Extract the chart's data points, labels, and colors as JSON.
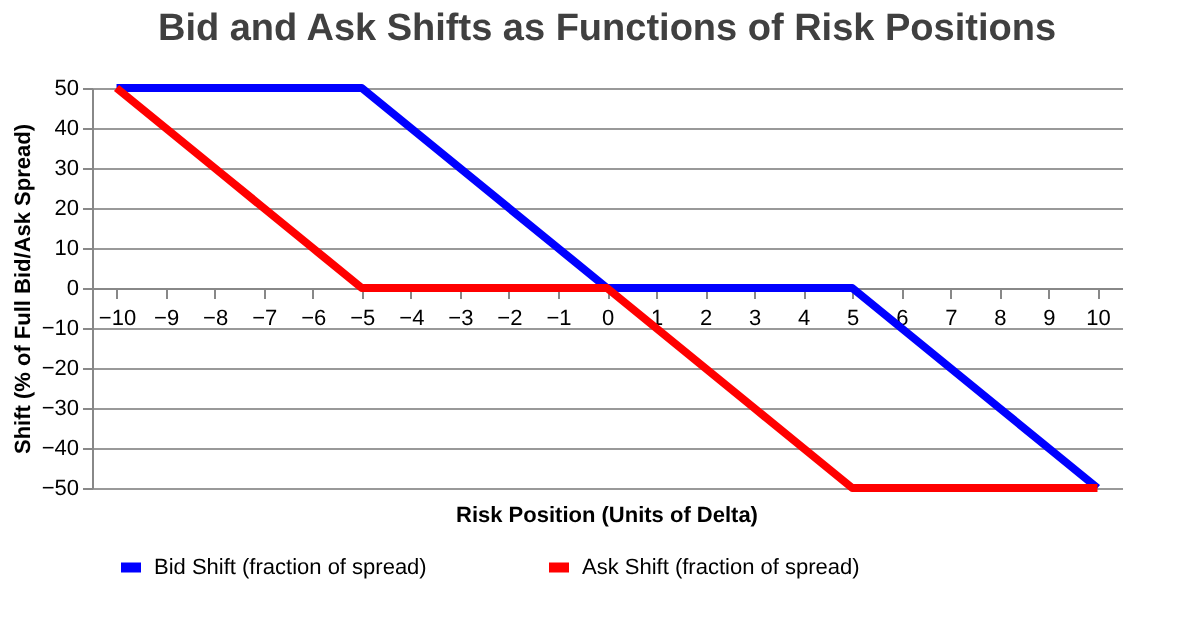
{
  "chart_data": {
    "type": "line",
    "title": "Bid and Ask Shifts as Functions of Risk Positions",
    "xlabel": "Risk Position (Units of Delta)",
    "ylabel": "Shift (% of Full Bid/Ask Spread)",
    "x": [
      -10,
      -9,
      -8,
      -7,
      -6,
      -5,
      -4,
      -3,
      -2,
      -1,
      0,
      1,
      2,
      3,
      4,
      5,
      6,
      7,
      8,
      9,
      10
    ],
    "series": [
      {
        "name": "Bid Shift (fraction of spread)",
        "color": "#0000ff",
        "values": [
          50,
          50,
          50,
          50,
          50,
          50,
          40,
          30,
          20,
          10,
          0,
          0,
          0,
          0,
          0,
          0,
          -10,
          -20,
          -30,
          -40,
          -50
        ]
      },
      {
        "name": "Ask Shift (fraction of spread)",
        "color": "#ff0000",
        "values": [
          50,
          40,
          30,
          20,
          10,
          0,
          0,
          0,
          0,
          0,
          0,
          -10,
          -20,
          -30,
          -40,
          -50,
          -50,
          -50,
          -50,
          -50,
          -50
        ]
      }
    ],
    "xlim": [
      -10.5,
      10.5
    ],
    "xticks": [
      -10,
      -9,
      -8,
      -7,
      -6,
      -5,
      -4,
      -3,
      -2,
      -1,
      0,
      1,
      2,
      3,
      4,
      5,
      6,
      7,
      8,
      9,
      10
    ],
    "ylim": [
      -50,
      50
    ],
    "yticks": [
      -50,
      -40,
      -30,
      -20,
      -10,
      0,
      10,
      20,
      30,
      40,
      50
    ],
    "grid": "y",
    "legend": "bottom",
    "marker": "none",
    "line_style": "solid"
  }
}
